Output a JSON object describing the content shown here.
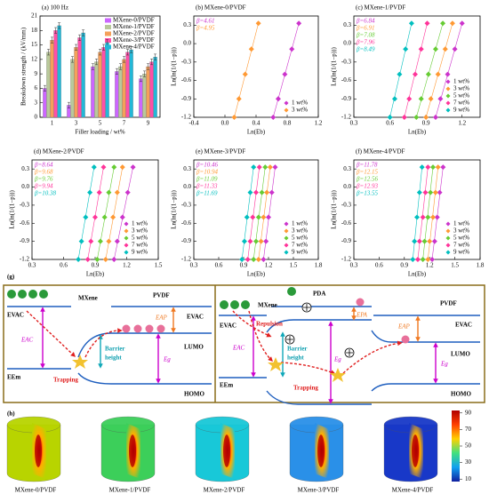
{
  "chart_data": [
    {
      "type": "bar",
      "title": "(a) 100 Hz",
      "xlabel": "Filler loading / wt%",
      "ylabel": "Breakdown strength / (kV/mm)",
      "categories": [
        "1",
        "3",
        "5",
        "7",
        "9"
      ],
      "ylim": [
        0,
        21
      ],
      "yticks": [
        0,
        3,
        6,
        9,
        12,
        15,
        18,
        21
      ],
      "legend": "upper right",
      "series": [
        {
          "name": "MXene-0/PVDF",
          "color": "#cc66ff",
          "values": [
            6,
            2.5,
            10.5,
            9.5,
            8
          ],
          "errors": [
            0.6,
            0.6,
            0.6,
            0.6,
            0.6
          ]
        },
        {
          "name": "MXene-1/PVDF",
          "color": "#b9c99b",
          "values": [
            13.5,
            12,
            11.5,
            10.5,
            9
          ],
          "errors": [
            0.6,
            0.6,
            0.6,
            0.6,
            0.6
          ]
        },
        {
          "name": "MXene-2/PVDF",
          "color": "#f5a05a",
          "values": [
            16,
            14.5,
            13.5,
            12,
            10.5
          ],
          "errors": [
            0.6,
            0.6,
            0.6,
            0.6,
            0.6
          ]
        },
        {
          "name": "MXene-3/PVDF",
          "color": "#ff4fa8",
          "values": [
            18,
            16.5,
            14.5,
            13.5,
            11.5
          ],
          "errors": [
            0.6,
            0.6,
            0.6,
            0.6,
            0.6
          ]
        },
        {
          "name": "MXene-4/PVDF",
          "color": "#22b8d8",
          "values": [
            19,
            17.5,
            15.5,
            14,
            12.5
          ],
          "errors": [
            0.6,
            0.6,
            0.6,
            0.6,
            0.6
          ]
        }
      ]
    },
    {
      "type": "scatter",
      "title": "(b) MXene-0/PVDF",
      "xlabel": "Ln(Eb)",
      "ylabel": "Ln(ln(1/(1−p)))",
      "xlim": [
        -0.4,
        1.2
      ],
      "xticks": [
        -0.4,
        {
          "value": 0,
          "label": "0.0"
        },
        0.4,
        0.8,
        1.2
      ],
      "ylim": [
        -1.2,
        0.45
      ],
      "yticks": [
        0.3,
        {
          "value": 0,
          "label": "0.0"
        },
        -0.3,
        -0.6,
        -0.9,
        -1.2
      ],
      "legend": "lower right",
      "series": [
        {
          "name": "1 wt%",
          "annotation": "β=4.61",
          "color": "#cc33cc",
          "x": [
            0.62,
            0.685,
            0.77,
            0.86,
            0.95
          ],
          "values": [
            -1.2,
            -0.9,
            -0.5,
            -0.09,
            0.33
          ]
        },
        {
          "name": "3 wt%",
          "annotation": "β=4.95",
          "color": "#ff9933",
          "x": [
            0.12,
            0.18,
            0.26,
            0.34,
            0.43
          ],
          "values": [
            -1.2,
            -0.9,
            -0.5,
            -0.09,
            0.33
          ]
        }
      ]
    },
    {
      "type": "scatter",
      "title": "(c) MXene-1/PVDF",
      "xlabel": "Ln(Eb)",
      "ylabel": "Ln(ln(1/(1−p)))",
      "xlim": [
        0.3,
        1.35
      ],
      "xticks": [
        0.3,
        0.6,
        0.9,
        1.2
      ],
      "ylim": [
        -1.2,
        0.45
      ],
      "yticks": [
        0.3,
        {
          "value": 0,
          "label": "0.0"
        },
        -0.3,
        -0.6,
        -0.9,
        -1.2
      ],
      "legend": "lower right",
      "series": [
        {
          "name": "1 wt%",
          "annotation": "β=6.84",
          "color": "#cc33cc",
          "x": [
            0.98,
            1.02,
            1.08,
            1.14,
            1.2
          ],
          "values": [
            -1.2,
            -0.9,
            -0.5,
            -0.09,
            0.33
          ]
        },
        {
          "name": "3 wt%",
          "annotation": "β=6.91",
          "color": "#ff9933",
          "x": [
            0.9,
            0.94,
            1.0,
            1.06,
            1.12
          ],
          "values": [
            -1.2,
            -0.9,
            -0.5,
            -0.09,
            0.33
          ]
        },
        {
          "name": "5 wt%",
          "annotation": "β=7.08",
          "color": "#66cc33",
          "x": [
            0.82,
            0.86,
            0.92,
            0.98,
            1.04
          ],
          "values": [
            -1.2,
            -0.9,
            -0.5,
            -0.09,
            0.33
          ]
        },
        {
          "name": "7 wt%",
          "annotation": "β=7.96",
          "color": "#ff3399",
          "x": [
            0.72,
            0.76,
            0.81,
            0.86,
            0.91
          ],
          "values": [
            -1.2,
            -0.9,
            -0.5,
            -0.09,
            0.33
          ]
        },
        {
          "name": "9 wt%",
          "annotation": "β=8.49",
          "color": "#00bfbf",
          "x": [
            0.6,
            0.64,
            0.68,
            0.73,
            0.78
          ],
          "values": [
            -1.2,
            -0.9,
            -0.5,
            -0.09,
            0.33
          ]
        }
      ]
    },
    {
      "type": "scatter",
      "title": "(d) MXene-2/PVDF",
      "xlabel": "Ln(Eb)",
      "ylabel": "Ln(ln(1/(1−p)))",
      "xlim": [
        0.3,
        1.5
      ],
      "xticks": [
        0.3,
        0.6,
        0.9,
        1.2,
        1.5
      ],
      "ylim": [
        -1.2,
        0.45
      ],
      "yticks": [
        0.3,
        {
          "value": 0,
          "label": "0.0"
        },
        -0.3,
        -0.6,
        -0.9,
        -1.2
      ],
      "legend": "lower right",
      "series": [
        {
          "name": "1 wt%",
          "annotation": "β=8.64",
          "color": "#cc33cc",
          "x": [
            1.08,
            1.11,
            1.16,
            1.21,
            1.26
          ],
          "values": [
            -1.2,
            -0.9,
            -0.5,
            -0.09,
            0.33
          ]
        },
        {
          "name": "3 wt%",
          "annotation": "β=9.68",
          "color": "#ff9933",
          "x": [
            1.0,
            1.03,
            1.07,
            1.11,
            1.16
          ],
          "values": [
            -1.2,
            -0.9,
            -0.5,
            -0.09,
            0.33
          ]
        },
        {
          "name": "5 wt%",
          "annotation": "β=9.76",
          "color": "#66cc33",
          "x": [
            0.92,
            0.95,
            0.99,
            1.03,
            1.08
          ],
          "values": [
            -1.2,
            -0.9,
            -0.5,
            -0.09,
            0.33
          ]
        },
        {
          "name": "7 wt%",
          "annotation": "β=9.94",
          "color": "#ff3399",
          "x": [
            0.83,
            0.86,
            0.9,
            0.94,
            0.98
          ],
          "values": [
            -1.2,
            -0.9,
            -0.5,
            -0.09,
            0.33
          ]
        },
        {
          "name": "9 wt%",
          "annotation": "β=10.38",
          "color": "#00bfbf",
          "x": [
            0.74,
            0.77,
            0.81,
            0.85,
            0.89
          ],
          "values": [
            -1.2,
            -0.9,
            -0.5,
            -0.09,
            0.33
          ]
        }
      ]
    },
    {
      "type": "scatter",
      "title": "(e) MXene-3/PVDF",
      "xlabel": "Ln(Eb)",
      "ylabel": "Ln(ln(1/(1−p)))",
      "xlim": [
        0.3,
        1.8
      ],
      "xticks": [
        0.3,
        0.6,
        0.9,
        1.2,
        1.5,
        1.8
      ],
      "ylim": [
        -1.2,
        0.45
      ],
      "yticks": [
        0.3,
        {
          "value": 0,
          "label": "0.0"
        },
        -0.3,
        -0.6,
        -0.9,
        -1.2
      ],
      "legend": "lower right",
      "series": [
        {
          "name": "1 wt%",
          "annotation": "β=10.46",
          "color": "#cc33cc",
          "x": [
            1.14,
            1.17,
            1.2,
            1.24,
            1.28
          ],
          "values": [
            -1.2,
            -0.9,
            -0.5,
            -0.09,
            0.33
          ]
        },
        {
          "name": "3 wt%",
          "annotation": "β=10.94",
          "color": "#ff9933",
          "x": [
            1.08,
            1.11,
            1.14,
            1.18,
            1.22
          ],
          "values": [
            -1.2,
            -0.9,
            -0.5,
            -0.09,
            0.33
          ]
        },
        {
          "name": "5 wt%",
          "annotation": "β=11.09",
          "color": "#66cc33",
          "x": [
            1.02,
            1.05,
            1.08,
            1.12,
            1.16
          ],
          "values": [
            -1.2,
            -0.9,
            -0.5,
            -0.09,
            0.33
          ]
        },
        {
          "name": "7 wt%",
          "annotation": "β=11.33",
          "color": "#ff3399",
          "x": [
            0.95,
            0.98,
            1.01,
            1.05,
            1.09
          ],
          "values": [
            -1.2,
            -0.9,
            -0.5,
            -0.09,
            0.33
          ]
        },
        {
          "name": "9 wt%",
          "annotation": "β=11.69",
          "color": "#00bfbf",
          "x": [
            0.88,
            0.91,
            0.94,
            0.98,
            1.02
          ],
          "values": [
            -1.2,
            -0.9,
            -0.5,
            -0.09,
            0.33
          ]
        }
      ]
    },
    {
      "type": "scatter",
      "title": "(f) MXene-4/PVDF",
      "xlabel": "Ln(Eb)",
      "ylabel": "Ln(ln(1/(1−p)))",
      "xlim": [
        0.3,
        1.8
      ],
      "xticks": [
        0.3,
        0.6,
        0.9,
        1.2,
        1.5,
        1.8
      ],
      "ylim": [
        -1.2,
        0.45
      ],
      "yticks": [
        0.3,
        {
          "value": 0,
          "label": "0.0"
        },
        -0.3,
        -0.6,
        -0.9,
        -1.2
      ],
      "legend": "lower right",
      "series": [
        {
          "name": "1 wt%",
          "annotation": "β=11.78",
          "color": "#cc33cc",
          "x": [
            1.23,
            1.26,
            1.29,
            1.32,
            1.36
          ],
          "values": [
            -1.2,
            -0.9,
            -0.5,
            -0.09,
            0.33
          ]
        },
        {
          "name": "3 wt%",
          "annotation": "β=12.15",
          "color": "#ff9933",
          "x": [
            1.18,
            1.2,
            1.24,
            1.27,
            1.3
          ],
          "values": [
            -1.2,
            -0.9,
            -0.5,
            -0.09,
            0.33
          ]
        },
        {
          "name": "5 wt%",
          "annotation": "β=12.56",
          "color": "#66cc33",
          "x": [
            1.12,
            1.14,
            1.18,
            1.21,
            1.24
          ],
          "values": [
            -1.2,
            -0.9,
            -0.5,
            -0.09,
            0.33
          ]
        },
        {
          "name": "7 wt%",
          "annotation": "β=12.93",
          "color": "#ff3399",
          "x": [
            1.06,
            1.08,
            1.12,
            1.15,
            1.18
          ],
          "values": [
            -1.2,
            -0.9,
            -0.5,
            -0.09,
            0.33
          ]
        },
        {
          "name": "9 wt%",
          "annotation": "β=13.55",
          "color": "#00bfbf",
          "x": [
            1.0,
            1.02,
            1.05,
            1.08,
            1.11
          ],
          "values": [
            -1.2,
            -0.9,
            -0.5,
            -0.09,
            0.33
          ]
        }
      ]
    }
  ],
  "diagram": {
    "label": "(g)",
    "left": {
      "mxene": "MXene",
      "pvdf": "PVDF",
      "evac_m": "EVAC",
      "evac_p": "EVAC",
      "eac": "EAC",
      "eap": "EAP",
      "lumo": "LUMO",
      "homo": "HOMO",
      "eg": "Eg",
      "eem": "EEm",
      "barrier": [
        "Barrier",
        "height"
      ],
      "trapping": "Trapping"
    },
    "right": {
      "mxene": "MXene",
      "pda": "PDA",
      "pvdf": "PVDF",
      "evac_m": "EVAC",
      "evac_p": "EVAC",
      "eac": "EAC",
      "epa": "EPA",
      "eap": "EAP",
      "repulsion": "Repulsion",
      "lumo": "LUMO",
      "homo": "HOMO",
      "eg_pda": "Eg",
      "eg": "Eg",
      "eem": "EEm",
      "barrier": [
        "Barrier",
        "height"
      ],
      "trapping": "Trapping"
    }
  },
  "panel_h": {
    "label": "(h)",
    "samples": [
      {
        "name": "MXene-0/PVDF",
        "color": "#b8d400"
      },
      {
        "name": "MXene-1/PVDF",
        "color": "#3ccf5a"
      },
      {
        "name": "MXene-2/PVDF",
        "color": "#18c8d8"
      },
      {
        "name": "MXene-3/PVDF",
        "color": "#2a90e8"
      },
      {
        "name": "MXene-4/PVDF",
        "color": "#1838c8"
      }
    ],
    "colorbar": {
      "lim": [
        7,
        93
      ],
      "ticks": [
        90,
        70,
        50,
        30,
        10
      ]
    }
  }
}
